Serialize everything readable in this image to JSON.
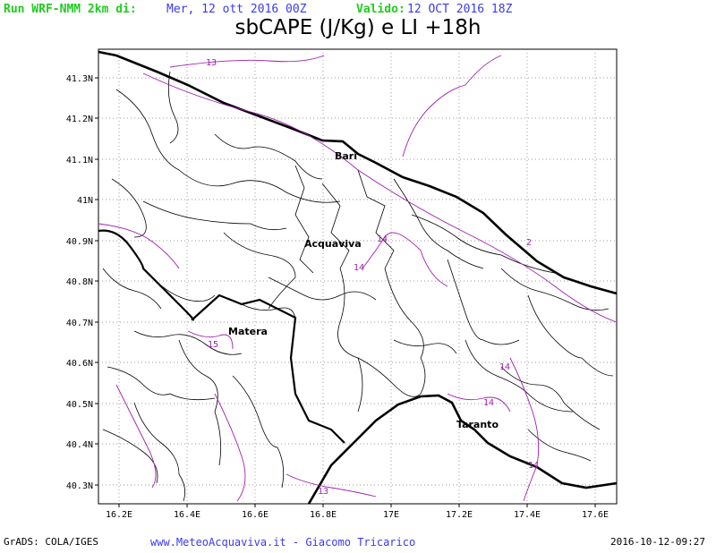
{
  "header": {
    "run_label": "Run WRF-NMM 2km di:",
    "run_date": "Mer, 12 ott 2016 00Z",
    "valid_label": "Valido:",
    "valid_date": "12 OCT 2016 18Z",
    "run_color": "#1fcc1f",
    "date_color": "#3a3af0"
  },
  "title": "sbCAPE (J/Kg) e LI +18h",
  "map": {
    "lat_ticks": [
      "41.3N",
      "41.2N",
      "41.1N",
      "41N",
      "40.9N",
      "40.8N",
      "40.7N",
      "40.6N",
      "40.5N",
      "40.4N",
      "40.3N"
    ],
    "lon_ticks": [
      "16.2E",
      "16.4E",
      "16.6E",
      "16.8E",
      "17E",
      "17.2E",
      "17.4E",
      "17.6E"
    ],
    "cities": [
      "Bari",
      "Acquaviva",
      "Matera",
      "Taranto"
    ],
    "contour_labels": [
      "13",
      "14",
      "14",
      "15",
      "14",
      "14",
      "14",
      "13",
      "2"
    ],
    "contour_color": "#a020b0"
  },
  "footer": {
    "left": "GrADS: COLA/IGES",
    "center": "www.MeteoAcquaviva.it  -  Giacomo Tricarico",
    "right": "2016-10-12-09:27",
    "center_color": "#3a3af0"
  }
}
